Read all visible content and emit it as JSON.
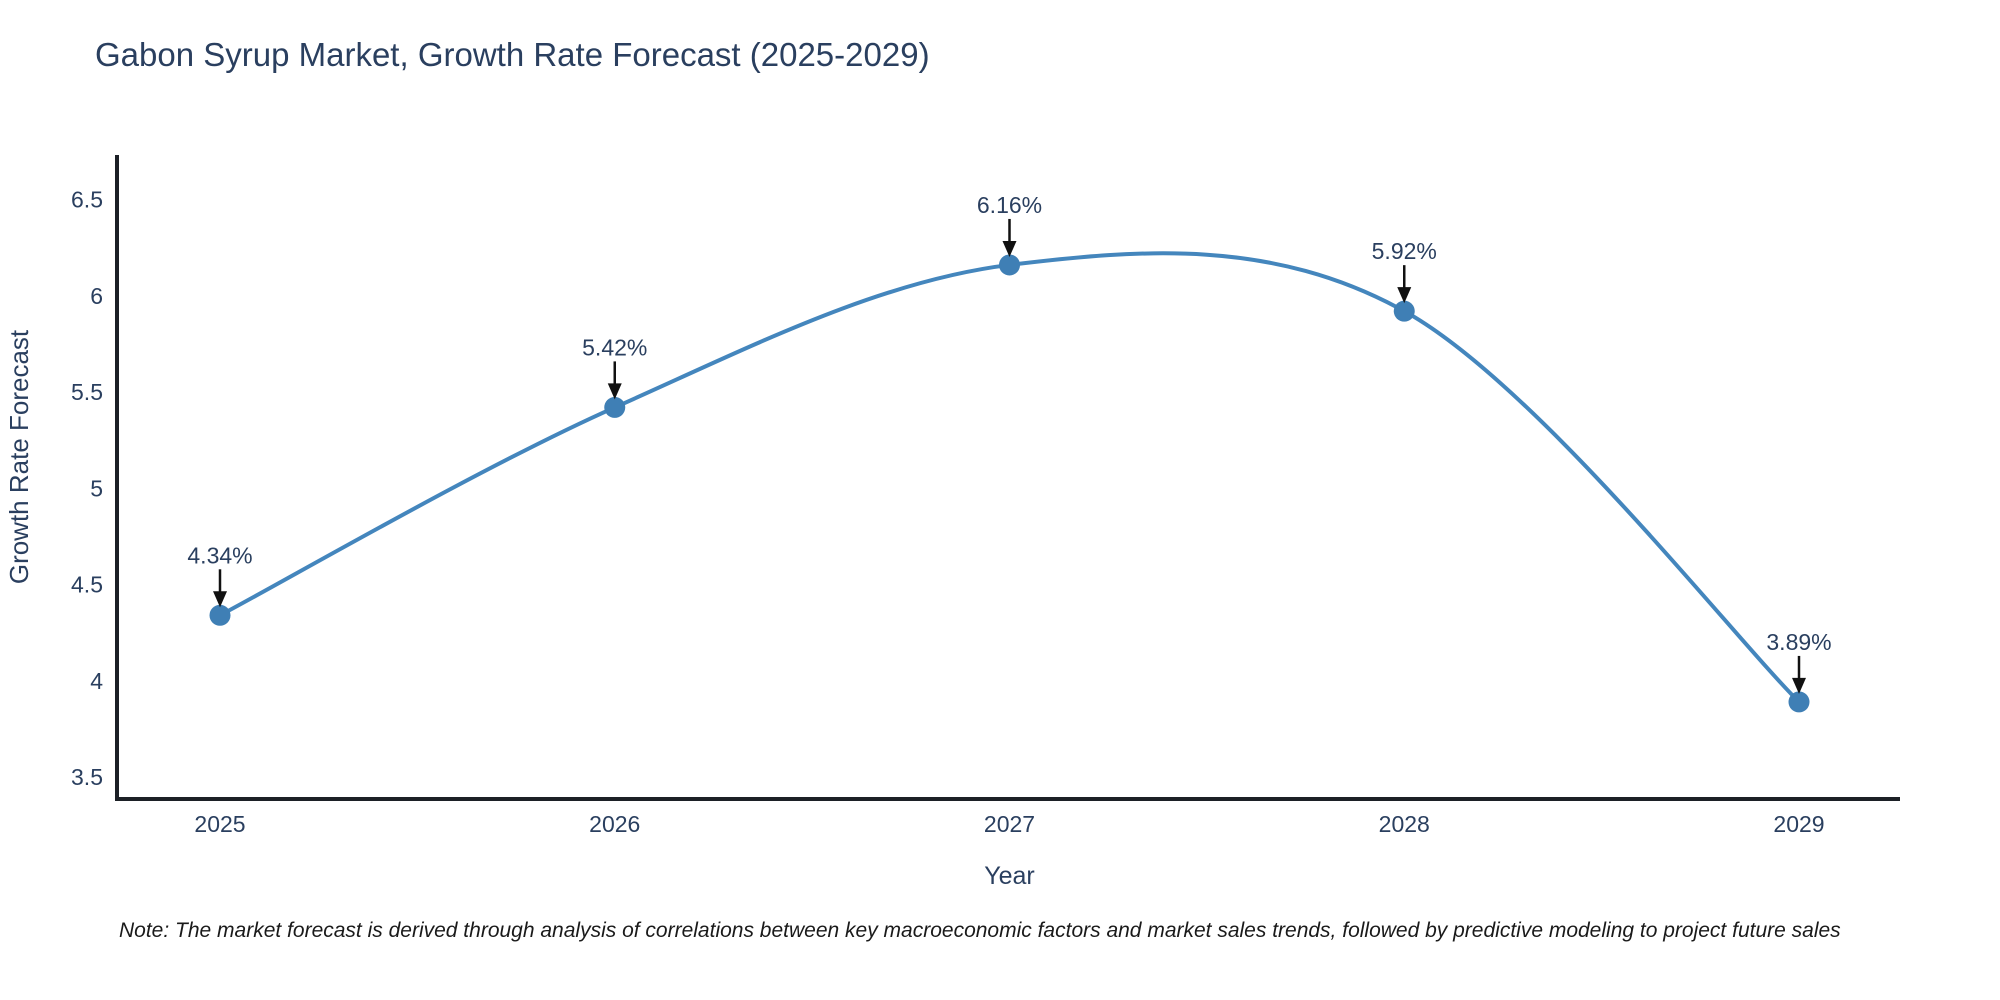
{
  "chart_data": {
    "type": "line",
    "title": "Gabon Syrup Market, Growth Rate Forecast (2025-2029)",
    "xlabel": "Year",
    "ylabel": "Growth Rate Forecast",
    "categories": [
      "2025",
      "2026",
      "2027",
      "2028",
      "2029"
    ],
    "values": [
      4.34,
      5.42,
      6.16,
      5.92,
      3.89
    ],
    "point_labels": [
      "4.34%",
      "5.42%",
      "6.16%",
      "5.92%",
      "3.89%"
    ],
    "yticks": [
      3.5,
      4,
      4.5,
      5,
      5.5,
      6,
      6.5
    ],
    "ylim": [
      3.39,
      6.73
    ],
    "line_shape": "spline",
    "grid": false,
    "legend_position": "none",
    "colors": {
      "line": "#4486bd",
      "marker": "#3f7fb5",
      "axis_spine": "#1c2026",
      "chart_text": "#2a3f5f",
      "annotation_arrow": "#111111",
      "background": "#ffffff"
    }
  },
  "note": {
    "text": "Note: The market forecast is derived through analysis of correlations between key macroeconomic factors and market sales trends, followed by predictive modeling to project future sales"
  }
}
